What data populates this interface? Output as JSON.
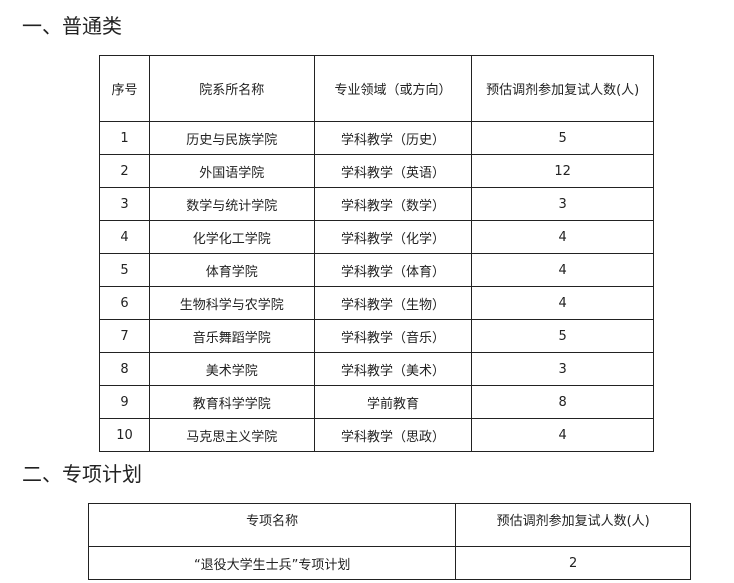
{
  "section1": {
    "title": "一、普通类",
    "headers": [
      "序号",
      "院系所名称",
      "专业领域（或方向）",
      "预估调剂参加复试人数(人)"
    ],
    "rows": [
      [
        "1",
        "历史与民族学院",
        "学科教学（历史）",
        "5"
      ],
      [
        "2",
        "外国语学院",
        "学科教学（英语）",
        "12"
      ],
      [
        "3",
        "数学与统计学院",
        "学科教学（数学）",
        "3"
      ],
      [
        "4",
        "化学化工学院",
        "学科教学（化学）",
        "4"
      ],
      [
        "5",
        "体育学院",
        "学科教学（体育）",
        "4"
      ],
      [
        "6",
        "生物科学与农学院",
        "学科教学（生物）",
        "4"
      ],
      [
        "7",
        "音乐舞蹈学院",
        "学科教学（音乐）",
        "5"
      ],
      [
        "8",
        "美术学院",
        "学科教学（美术）",
        "3"
      ],
      [
        "9",
        "教育科学学院",
        "学前教育",
        "8"
      ],
      [
        "10",
        "马克思主义学院",
        "学科教学（思政）",
        "4"
      ]
    ]
  },
  "section2": {
    "title": "二、专项计划",
    "headers": [
      "专项名称",
      "预估调剂参加复试人数(人)"
    ],
    "rows": [
      [
        "“退役大学生士兵”专项计划",
        "2"
      ]
    ]
  }
}
